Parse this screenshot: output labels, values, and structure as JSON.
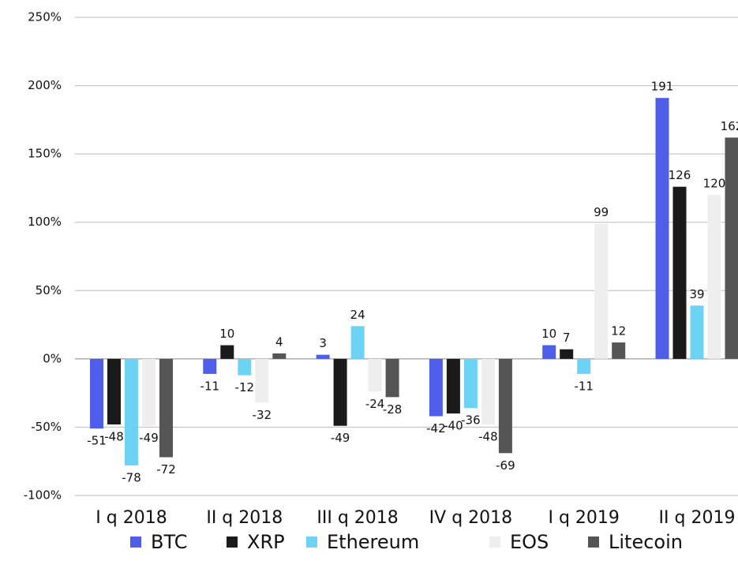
{
  "chart_data": {
    "type": "bar",
    "categories": [
      "I q 2018",
      "II q 2018",
      "III q 2018",
      "IV q 2018",
      "I q 2019",
      "II q 2019"
    ],
    "series": [
      {
        "name": "BTC",
        "color": "#4f5ee8",
        "values": [
          -51,
          -11,
          3,
          -42,
          10,
          191
        ]
      },
      {
        "name": "XRP",
        "color": "#1a1a1a",
        "values": [
          -48,
          10,
          -49,
          -40,
          7,
          126
        ]
      },
      {
        "name": "Ethereum",
        "color": "#6dd3f5",
        "values": [
          -78,
          -12,
          24,
          -36,
          -11,
          39
        ]
      },
      {
        "name": "EOS",
        "color": "#eeeeee",
        "values": [
          -49,
          -32,
          -24,
          -48,
          99,
          120
        ]
      },
      {
        "name": "Litecoin",
        "color": "#555555",
        "values": [
          -72,
          4,
          -28,
          -69,
          12,
          162
        ]
      }
    ],
    "ylim": [
      -100,
      250
    ],
    "yticks": [
      {
        "value": -100,
        "label": "-100%"
      },
      {
        "value": -50,
        "label": "-50%"
      },
      {
        "value": 0,
        "label": "0%"
      },
      {
        "value": 50,
        "label": "50%"
      },
      {
        "value": 100,
        "label": "100%"
      },
      {
        "value": 150,
        "label": "150%"
      },
      {
        "value": 200,
        "label": "200%"
      },
      {
        "value": 250,
        "label": "250%"
      }
    ],
    "grid": true,
    "legend": "bottom"
  }
}
